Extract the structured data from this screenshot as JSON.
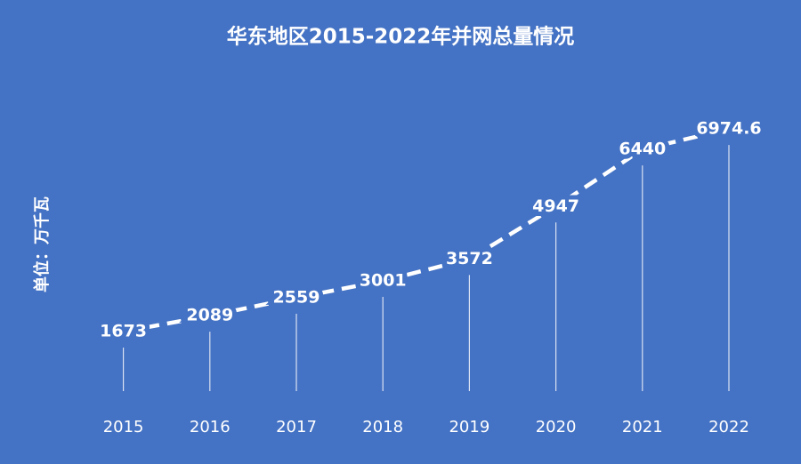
{
  "chart_data": {
    "type": "line",
    "title": "华东地区2015-2022年并网总量情况",
    "y_label": "单位：万千瓦",
    "categories": [
      "2015",
      "2016",
      "2017",
      "2018",
      "2019",
      "2020",
      "2021",
      "2022"
    ],
    "values": [
      1673,
      2089,
      2559,
      3001,
      3572,
      4947,
      6440,
      6974.6
    ],
    "color": "#ffffff",
    "background": "#4472c4"
  }
}
